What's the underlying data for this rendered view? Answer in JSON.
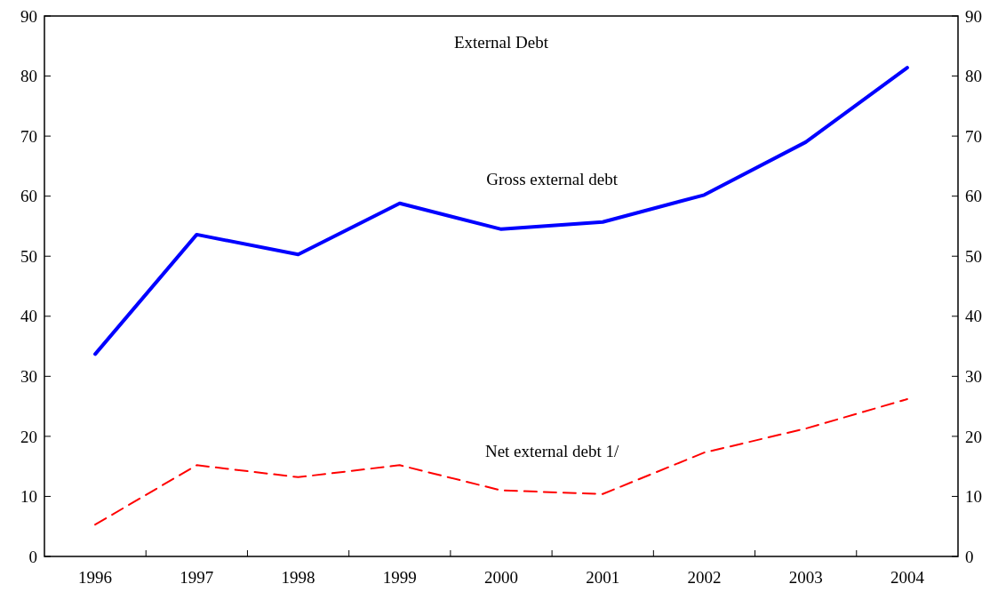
{
  "chart_data": {
    "type": "line",
    "title": "External Debt",
    "categories": [
      "1996",
      "1997",
      "1998",
      "1999",
      "2000",
      "2001",
      "2002",
      "2003",
      "2004"
    ],
    "series": [
      {
        "name": "Gross external debt",
        "color": "#0000ff",
        "line_style": "solid",
        "values": [
          33.7,
          53.6,
          50.3,
          58.8,
          54.5,
          55.7,
          60.2,
          69.0,
          81.4
        ]
      },
      {
        "name": "Net external debt 1/",
        "color": "#ff0000",
        "line_style": "dashed",
        "values": [
          5.3,
          15.2,
          13.2,
          15.2,
          11.0,
          10.4,
          17.3,
          21.3,
          26.2
        ]
      }
    ],
    "ylim": [
      0,
      90
    ],
    "yticks": [
      0,
      10,
      20,
      30,
      40,
      50,
      60,
      70,
      80,
      90
    ],
    "y2lim": [
      0,
      90
    ],
    "y2ticks": [
      0,
      10,
      20,
      30,
      40,
      50,
      60,
      70,
      80,
      90
    ],
    "grid": false
  }
}
